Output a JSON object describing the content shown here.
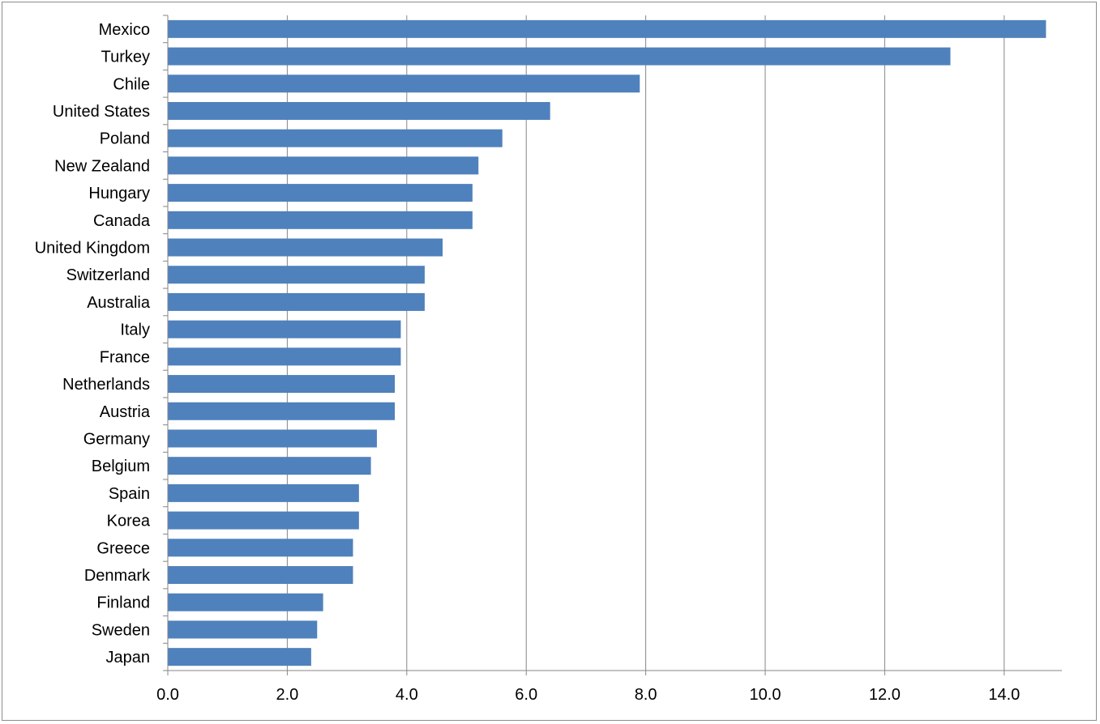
{
  "chart_data": {
    "type": "bar",
    "orientation": "horizontal",
    "categories": [
      "Mexico",
      "Turkey",
      "Chile",
      "United States",
      "Poland",
      "New Zealand",
      "Hungary",
      "Canada",
      "United Kingdom",
      "Switzerland",
      "Australia",
      "Italy",
      "France",
      "Netherlands",
      "Austria",
      "Germany",
      "Belgium",
      "Spain",
      "Korea",
      "Greece",
      "Denmark",
      "Finland",
      "Sweden",
      "Japan"
    ],
    "values": [
      14.7,
      13.1,
      7.9,
      6.4,
      5.6,
      5.2,
      5.1,
      5.1,
      4.6,
      4.3,
      4.3,
      3.9,
      3.9,
      3.8,
      3.8,
      3.5,
      3.4,
      3.2,
      3.2,
      3.1,
      3.1,
      2.6,
      2.5,
      2.4
    ],
    "title": "",
    "xlabel": "",
    "ylabel": "",
    "xlim": [
      0,
      15
    ],
    "xticks": [
      "0.0",
      "2.0",
      "4.0",
      "6.0",
      "8.0",
      "10.0",
      "12.0",
      "14.0"
    ],
    "xtick_values": [
      0,
      2,
      4,
      6,
      8,
      10,
      12,
      14
    ],
    "grid": "vertical",
    "legend": "none",
    "bar_color": "#4f81bd",
    "grid_color": "#868686"
  }
}
